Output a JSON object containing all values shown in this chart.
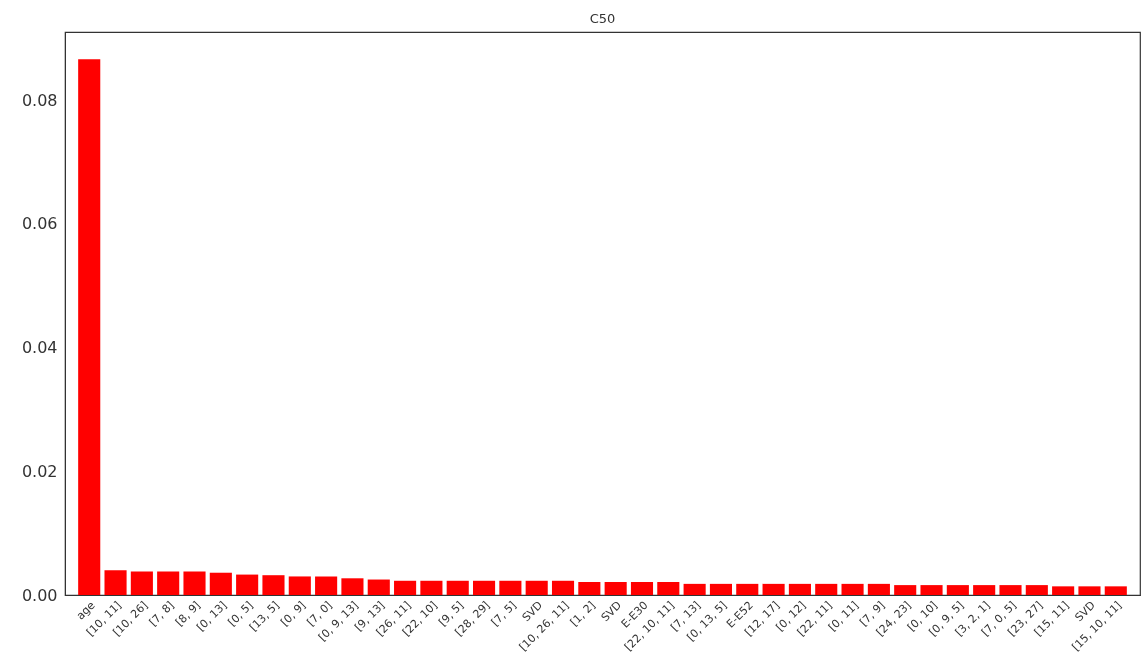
{
  "chart_data": {
    "type": "bar",
    "title": "C50",
    "categories": [
      "age",
      "[10, 11]",
      "[10, 26]",
      "[7, 8]",
      "[8, 9]",
      "[0, 13]",
      "[0, 5]",
      "[13, 5]",
      "[0, 9]",
      "[7, 0]",
      "[0, 9, 13]",
      "[9, 13]",
      "[26, 11]",
      "[22, 10]",
      "[9, 5]",
      "[28, 29]",
      "[7, 5]",
      "SVD",
      "[10, 26, 11]",
      "[1, 2]",
      "SVD",
      "E-E30",
      "[22, 10, 11]",
      "[7, 13]",
      "[0, 13, 5]",
      "E-E52",
      "[12, 17]",
      "[0, 12]",
      "[22, 11]",
      "[0, 11]",
      "[7, 9]",
      "[24, 23]",
      "[0, 10]",
      "[0, 9, 5]",
      "[3, 2, 1]",
      "[7, 0, 5]",
      "[23, 27]",
      "[15, 11]",
      "SVD",
      "[15, 10, 11]"
    ],
    "values": [
      0.0866,
      0.004,
      0.0038,
      0.0038,
      0.0038,
      0.0036,
      0.0033,
      0.0032,
      0.003,
      0.003,
      0.0027,
      0.0025,
      0.0023,
      0.0023,
      0.0023,
      0.0023,
      0.0023,
      0.0023,
      0.0023,
      0.0021,
      0.0021,
      0.0021,
      0.0021,
      0.0018,
      0.0018,
      0.0018,
      0.0018,
      0.0018,
      0.0018,
      0.0018,
      0.0018,
      0.0016,
      0.0016,
      0.0016,
      0.0016,
      0.0016,
      0.0016,
      0.0014,
      0.0014,
      0.0014
    ],
    "color": "#ff0000",
    "ylim": [
      0,
      0.091
    ],
    "yticks": [
      {
        "value": 0,
        "label": "0.00"
      },
      {
        "value": 0.02,
        "label": "0.02"
      },
      {
        "value": 0.04,
        "label": "0.04"
      },
      {
        "value": 0.06,
        "label": "0.06"
      },
      {
        "value": 0.08,
        "label": "0.08"
      }
    ],
    "grid": false
  }
}
